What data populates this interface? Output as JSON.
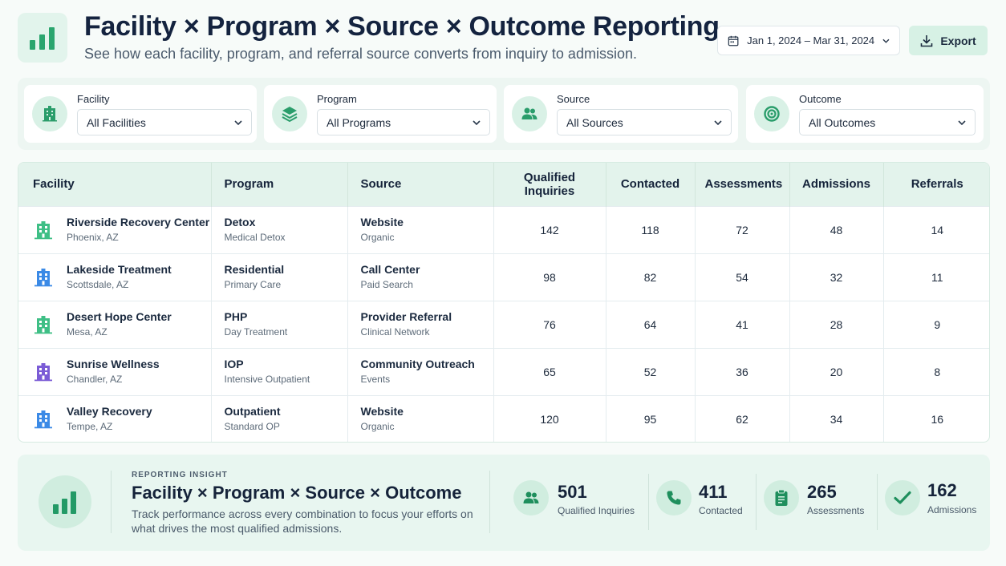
{
  "header": {
    "title": "Facility × Program × Source × Outcome Reporting",
    "subtitle": "See how each facility, program,  and referral source converts from inquiry to admission.",
    "date_range": "Jan 1, 2024 – Mar 31, 2024",
    "export_label": "Export",
    "logo_icon": "bar-chart-icon"
  },
  "filters": [
    {
      "label": "Facility",
      "value": "All Facilities",
      "icon": "building-icon"
    },
    {
      "label": "Program",
      "value": "All Programs",
      "icon": "layers-icon"
    },
    {
      "label": "Source",
      "value": "All Sources",
      "icon": "users-icon"
    },
    {
      "label": "Outcome",
      "value": "All Outcomes",
      "icon": "target-icon"
    }
  ],
  "table": {
    "columns": [
      "Facility",
      "Program",
      "Source",
      "Qualified Inquiries",
      "Contacted",
      "Assessments",
      "Admissions",
      "Referrals"
    ],
    "rows": [
      {
        "facility": "Riverside Recovery Center",
        "location": "Phoenix, AZ",
        "icon_color": "#3fbf86",
        "program": "Detox",
        "program_sub": "Medical Detox",
        "source": "Website",
        "source_sub": "Organic",
        "qualified": "142",
        "contacted": "118",
        "assessments": "72",
        "admissions": "48",
        "referrals": "14"
      },
      {
        "facility": "Lakeside Treatment",
        "location": "Scottsdale, AZ",
        "icon_color": "#3b8ae6",
        "program": "Residential",
        "program_sub": "Primary Care",
        "source": "Call Center",
        "source_sub": "Paid Search",
        "qualified": "98",
        "contacted": "82",
        "assessments": "54",
        "admissions": "32",
        "referrals": "11"
      },
      {
        "facility": "Desert Hope Center",
        "location": "Mesa, AZ",
        "icon_color": "#3fbf86",
        "program": "PHP",
        "program_sub": "Day Treatment",
        "source": "Provider Referral",
        "source_sub": "Clinical Network",
        "qualified": "76",
        "contacted": "64",
        "assessments": "41",
        "admissions": "28",
        "referrals": "9"
      },
      {
        "facility": "Sunrise Wellness",
        "location": "Chandler, AZ",
        "icon_color": "#7b5cd6",
        "program": "IOP",
        "program_sub": "Intensive Outpatient",
        "source": "Community Outreach",
        "source_sub": "Events",
        "qualified": "65",
        "contacted": "52",
        "assessments": "36",
        "admissions": "20",
        "referrals": "8"
      },
      {
        "facility": "Valley Recovery",
        "location": "Tempe, AZ",
        "icon_color": "#3b8ae6",
        "program": "Outpatient",
        "program_sub": "Standard OP",
        "source": "Website",
        "source_sub": "Organic",
        "qualified": "120",
        "contacted": "95",
        "assessments": "62",
        "admissions": "34",
        "referrals": "16"
      }
    ]
  },
  "insight": {
    "eyebrow": "REPORTING INSIGHT",
    "title": "Facility × Program × Source × Outcome",
    "body": "Track performance across every combination to focus your efforts on what drives the most qualified admissions.",
    "stats": [
      {
        "value": "501",
        "label": "Qualified Inquiries",
        "icon": "users-icon"
      },
      {
        "value": "411",
        "label": "Contacted",
        "icon": "phone-icon"
      },
      {
        "value": "265",
        "label": "Assessments",
        "icon": "clipboard-icon"
      },
      {
        "value": "162",
        "label": "Admissions",
        "icon": "check-icon"
      }
    ]
  },
  "colors": {
    "accent": "#1f9d6a",
    "accent_light": "#d9f1e6"
  }
}
